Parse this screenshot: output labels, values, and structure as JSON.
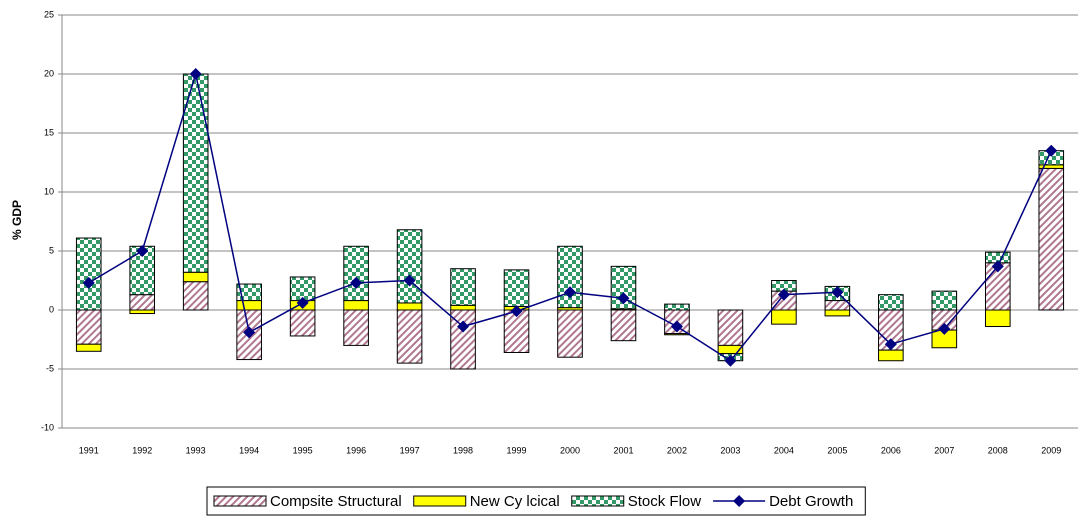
{
  "chart_data": {
    "type": "stacked-bar-line",
    "y_label": "% GDP",
    "categories": [
      "1991",
      "1992",
      "1993",
      "1994",
      "1995",
      "1996",
      "1997",
      "1998",
      "1999",
      "2000",
      "2001",
      "2002",
      "2003",
      "2004",
      "2005",
      "2006",
      "2007",
      "2008",
      "2009"
    ],
    "series": [
      {
        "name": "Compsite Structural",
        "type": "bar",
        "pattern": "hatch",
        "color": "#b07890",
        "values": [
          -2.9,
          1.3,
          2.4,
          -4.2,
          -2.2,
          -3.0,
          -4.5,
          -5.0,
          -3.6,
          -4.0,
          -2.6,
          -2.0,
          -3.0,
          1.6,
          0.8,
          -3.4,
          -1.7,
          4.0,
          12.0
        ]
      },
      {
        "name": "New Cy lcical",
        "type": "bar",
        "pattern": "solid",
        "color": "#ffff00",
        "values": [
          -0.6,
          -0.3,
          0.8,
          0.8,
          0.8,
          0.8,
          0.6,
          0.4,
          0.3,
          0.2,
          0.1,
          -0.1,
          -0.7,
          -1.2,
          -0.5,
          -0.9,
          -1.5,
          -1.4,
          0.3
        ]
      },
      {
        "name": "Stock Flow",
        "type": "bar",
        "pattern": "checker",
        "color": "#339966",
        "values": [
          6.1,
          4.1,
          16.8,
          1.4,
          2.0,
          4.6,
          6.2,
          3.1,
          3.1,
          5.2,
          3.6,
          0.5,
          -0.6,
          0.9,
          1.2,
          1.3,
          1.6,
          0.9,
          1.2
        ]
      },
      {
        "name": "Debt Growth",
        "type": "line",
        "color": "#000080",
        "values": [
          2.3,
          5.0,
          20.0,
          -1.9,
          0.6,
          2.3,
          2.5,
          -1.4,
          -0.1,
          1.5,
          1.0,
          -1.4,
          -4.3,
          1.3,
          1.5,
          -2.9,
          -1.6,
          3.7,
          13.5
        ]
      }
    ],
    "ylim": [
      -10,
      25
    ],
    "yticks": [
      -10,
      -5,
      0,
      5,
      10,
      15,
      20,
      25
    ],
    "grid": true,
    "legend": "bottom"
  }
}
